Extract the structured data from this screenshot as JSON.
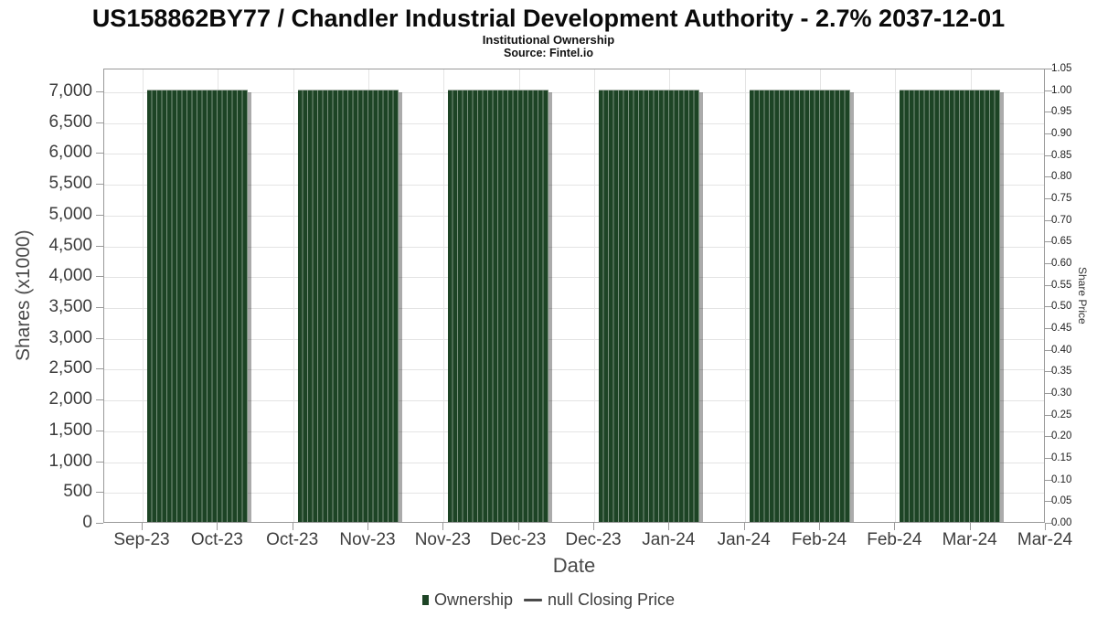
{
  "chart_data": {
    "type": "bar",
    "title": "US158862BY77 / Chandler Industrial Development Authority - 2.7% 2037-12-01",
    "subtitle": "Institutional Ownership",
    "source": "Source: Fintel.io",
    "xlabel": "Date",
    "x_tick_labels": [
      "Sep-23",
      "Oct-23",
      "Oct-23",
      "Nov-23",
      "Nov-23",
      "Dec-23",
      "Dec-23",
      "Jan-24",
      "Jan-24",
      "Feb-24",
      "Feb-24",
      "Mar-24",
      "Mar-24"
    ],
    "y_axis_left": {
      "label": "Shares (x1000)",
      "min": 0,
      "max": 7370,
      "tick_labels": [
        "0",
        "500",
        "1,000",
        "1,500",
        "2,000",
        "2,500",
        "3,000",
        "3,500",
        "4,000",
        "4,500",
        "5,000",
        "5,500",
        "6,000",
        "6,500",
        "7,000"
      ]
    },
    "y_axis_right": {
      "label": "Share Price",
      "min": 0,
      "max": 1.05,
      "tick_labels": [
        "0.00",
        "0.05",
        "0.10",
        "0.15",
        "0.20",
        "0.25",
        "0.30",
        "0.35",
        "0.40",
        "0.45",
        "0.50",
        "0.55",
        "0.60",
        "0.65",
        "0.70",
        "0.75",
        "0.80",
        "0.85",
        "0.90",
        "0.95",
        "1.00",
        "1.05"
      ]
    },
    "grid": true,
    "legend_position": "bottom",
    "series": [
      {
        "name": "Ownership",
        "type": "bar",
        "color": "#1d4425",
        "shadow_color": "#9e9e9e",
        "units": "shares (x1000)",
        "categories": [
          "Sep-23",
          "Oct-23",
          "Nov-23",
          "Dec-23",
          "Jan-24",
          "Feb-24"
        ],
        "values": [
          7000,
          7000,
          7000,
          7000,
          7000,
          7000
        ]
      },
      {
        "name": "null Closing Price",
        "type": "line",
        "color": "#4a4a4a",
        "values": []
      }
    ]
  },
  "colors": {
    "grid": "#e4e4e4",
    "axis_border": "#999999",
    "tickmark": "#9a9a9a",
    "axis_text": "#3d3d3d"
  }
}
